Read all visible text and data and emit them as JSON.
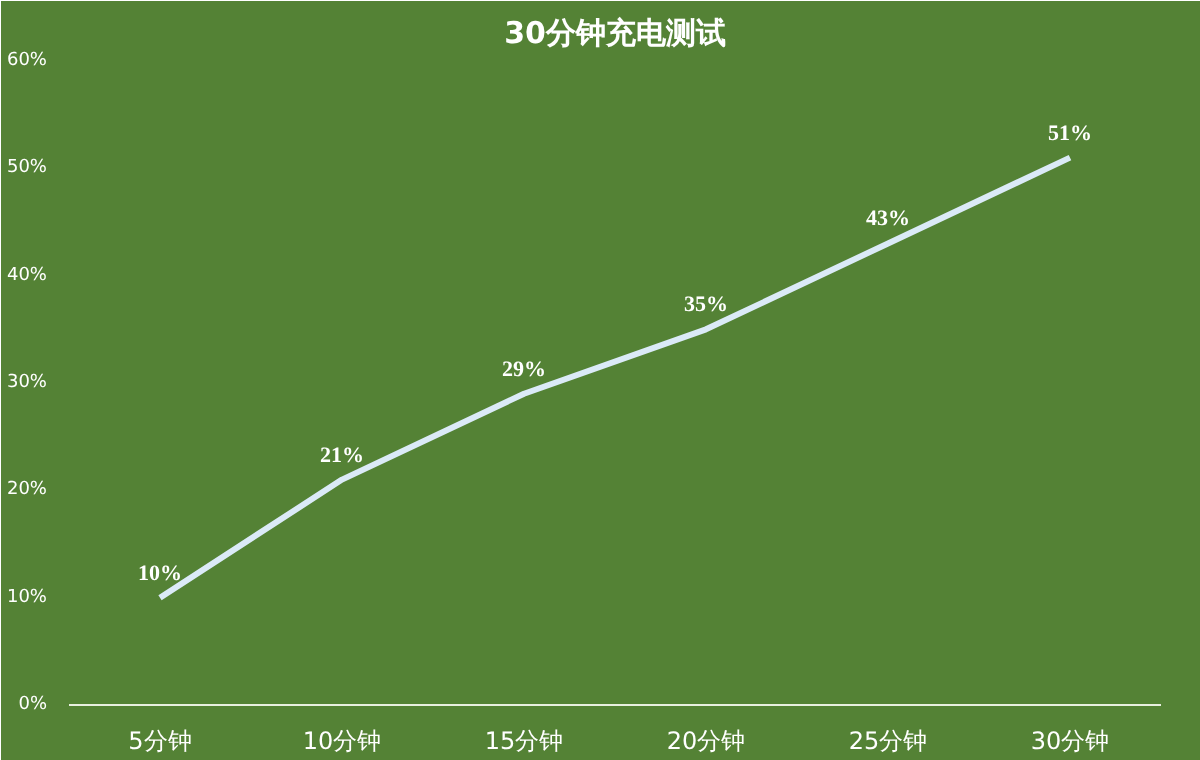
{
  "chart_data": {
    "type": "line",
    "title": "30分钟充电测试",
    "categories": [
      "5分钟",
      "10分钟",
      "15分钟",
      "20分钟",
      "25分钟",
      "30分钟"
    ],
    "series": [
      {
        "color": "#dbeaf7",
        "values": [
          10,
          21,
          29,
          35,
          43,
          51
        ],
        "value_labels": [
          "10%",
          "21%",
          "29%",
          "35%",
          "43%",
          "51%"
        ]
      }
    ],
    "ylim": [
      0,
      60
    ],
    "yticks": [
      {
        "value": 0,
        "label": "0%"
      },
      {
        "value": 10,
        "label": "10%"
      },
      {
        "value": 20,
        "label": "20%"
      },
      {
        "value": 30,
        "label": "30%"
      },
      {
        "value": 40,
        "label": "40%"
      },
      {
        "value": 50,
        "label": "50%"
      },
      {
        "value": 60,
        "label": "60%"
      }
    ],
    "grid": false,
    "marker": "none",
    "line_style": "solid"
  }
}
